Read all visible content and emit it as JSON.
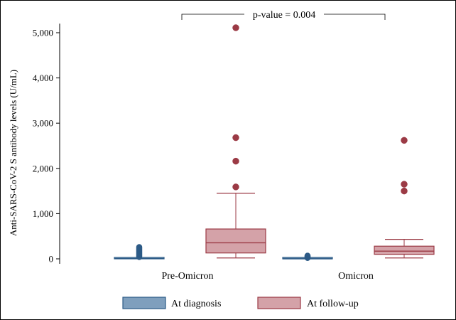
{
  "chart_data": {
    "type": "box",
    "ylabel": "Anti-SARS-CoV-2 S antibody levels (U/mL)",
    "xlabel": "",
    "ylim": [
      0,
      5200
    ],
    "yticks": [
      0,
      1000,
      2000,
      3000,
      4000,
      5000
    ],
    "ytick_labels": [
      "0",
      "1,000",
      "2,000",
      "3,000",
      "4,000",
      "5,000"
    ],
    "grid": false,
    "categories": [
      "Pre-Omicron",
      "Omicron"
    ],
    "series": [
      {
        "name": "At diagnosis",
        "color": "#7f9fbd",
        "edge_color": "#2c5a86",
        "boxes": [
          {
            "category": "Pre-Omicron",
            "min": 0,
            "q1": 0,
            "median": 5,
            "q3": 15,
            "max": 30,
            "outliers": [
              40,
              60,
              80,
              100,
              120,
              140,
              160,
              180,
              200,
              220,
              240,
              260
            ]
          },
          {
            "category": "Omicron",
            "min": 0,
            "q1": 0,
            "median": 2,
            "q3": 8,
            "max": 15,
            "outliers": [
              20,
              30,
              40,
              50,
              60,
              70
            ]
          }
        ]
      },
      {
        "name": "At follow-up",
        "color": "#d4a2a8",
        "edge_color": "#9b3a45",
        "boxes": [
          {
            "category": "Pre-Omicron",
            "min": 20,
            "q1": 130,
            "median": 355,
            "q3": 660,
            "max": 1450,
            "outliers": [
              1590,
              2160,
              2680,
              5110
            ]
          },
          {
            "category": "Omicron",
            "min": 20,
            "q1": 100,
            "median": 170,
            "q3": 280,
            "max": 430,
            "outliers": [
              1500,
              1650,
              2620
            ]
          }
        ]
      }
    ],
    "annotation": {
      "text": "p-value = 0.004",
      "between": [
        "Pre-Omicron / At follow-up",
        "Omicron / At follow-up"
      ]
    },
    "legend_position": "bottom"
  }
}
